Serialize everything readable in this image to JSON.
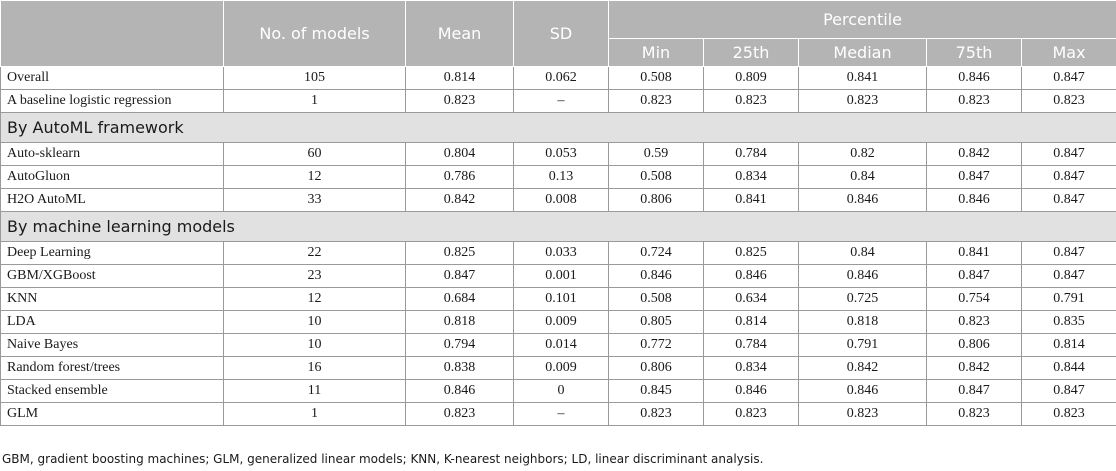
{
  "header": {
    "col_models": "No. of models",
    "col_mean": "Mean",
    "col_sd": "SD",
    "col_percentile": "Percentile",
    "col_min": "Min",
    "col_25th": "25th",
    "col_median": "Median",
    "col_75th": "75th",
    "col_max": "Max"
  },
  "rows": {
    "overall": [
      "Overall",
      "105",
      "0.814",
      "0.062",
      "0.508",
      "0.809",
      "0.841",
      "0.846",
      "0.847"
    ],
    "baseline": [
      "A baseline logistic regression",
      "1",
      "0.823",
      "–",
      "0.823",
      "0.823",
      "0.823",
      "0.823",
      "0.823"
    ]
  },
  "sections": {
    "automl_title": "By AutoML framework",
    "automl": [
      [
        "Auto-sklearn",
        "60",
        "0.804",
        "0.053",
        "0.59",
        "0.784",
        "0.82",
        "0.842",
        "0.847"
      ],
      [
        "AutoGluon",
        "12",
        "0.786",
        "0.13",
        "0.508",
        "0.834",
        "0.84",
        "0.847",
        "0.847"
      ],
      [
        "H2O AutoML",
        "33",
        "0.842",
        "0.008",
        "0.806",
        "0.841",
        "0.846",
        "0.846",
        "0.847"
      ]
    ],
    "ml_title": "By machine learning models",
    "ml": [
      [
        "Deep Learning",
        "22",
        "0.825",
        "0.033",
        "0.724",
        "0.825",
        "0.84",
        "0.841",
        "0.847"
      ],
      [
        "GBM/XGBoost",
        "23",
        "0.847",
        "0.001",
        "0.846",
        "0.846",
        "0.846",
        "0.847",
        "0.847"
      ],
      [
        "KNN",
        "12",
        "0.684",
        "0.101",
        "0.508",
        "0.634",
        "0.725",
        "0.754",
        "0.791"
      ],
      [
        "LDA",
        "10",
        "0.818",
        "0.009",
        "0.805",
        "0.814",
        "0.818",
        "0.823",
        "0.835"
      ],
      [
        "Naive Bayes",
        "10",
        "0.794",
        "0.014",
        "0.772",
        "0.784",
        "0.791",
        "0.806",
        "0.814"
      ],
      [
        "Random forest/trees",
        "16",
        "0.838",
        "0.009",
        "0.806",
        "0.834",
        "0.842",
        "0.842",
        "0.844"
      ],
      [
        "Stacked ensemble",
        "11",
        "0.846",
        "0",
        "0.845",
        "0.846",
        "0.846",
        "0.847",
        "0.847"
      ],
      [
        "GLM",
        "1",
        "0.823",
        "–",
        "0.823",
        "0.823",
        "0.823",
        "0.823",
        "0.823"
      ]
    ]
  },
  "footnote": "GBM, gradient boosting machines; GLM, generalized linear models; KNN, K-nearest neighbors; LD, linear discriminant analysis."
}
